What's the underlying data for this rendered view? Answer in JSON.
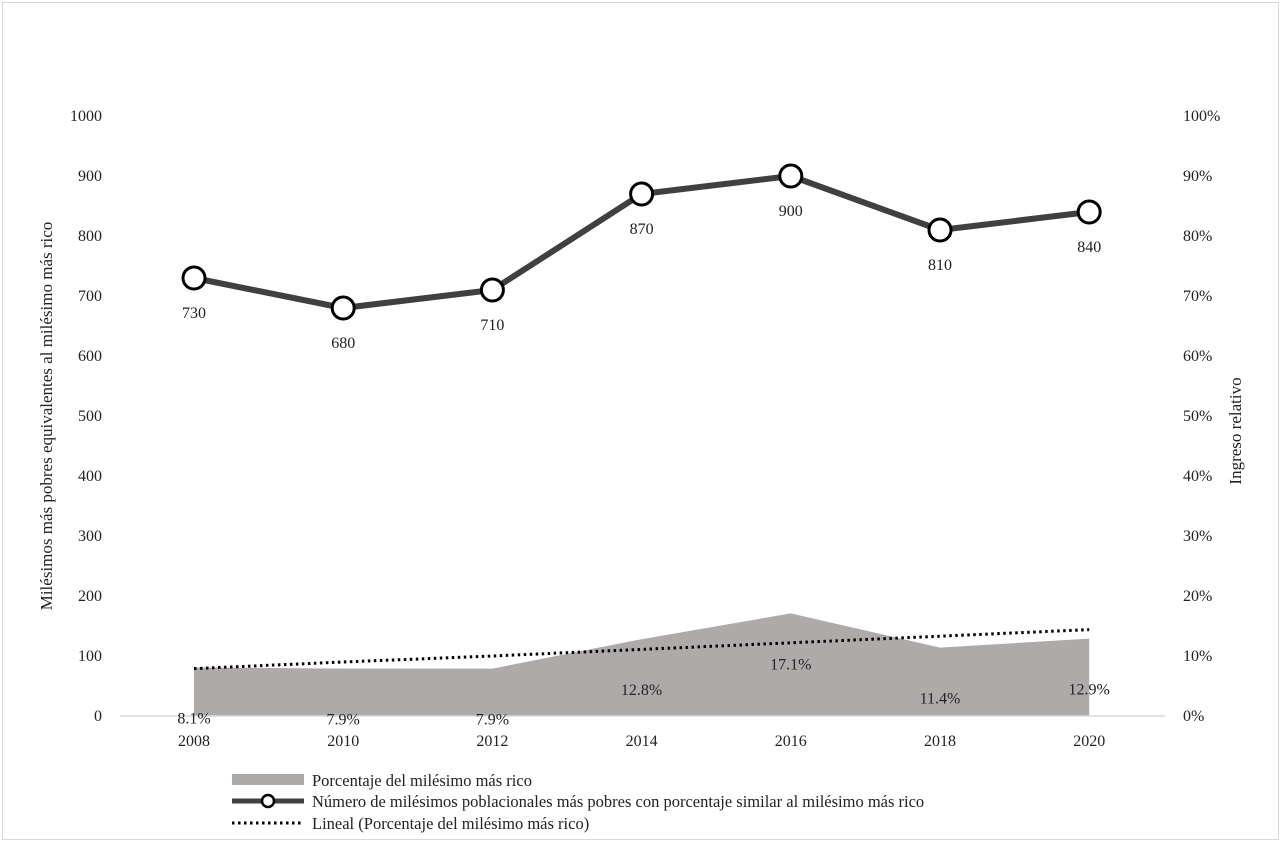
{
  "chart_data": {
    "type": "line",
    "x": [
      "2008",
      "2010",
      "2012",
      "2014",
      "2016",
      "2018",
      "2020"
    ],
    "left_axis": {
      "label": "Milésimos más pobres equivalentes al milésimo más rico",
      "range": [
        0,
        1000
      ],
      "ticks": [
        "0",
        "100",
        "200",
        "300",
        "400",
        "500",
        "600",
        "700",
        "800",
        "900",
        "1000"
      ]
    },
    "right_axis": {
      "label": "Ingreso relativo",
      "range": [
        0,
        100
      ],
      "ticks": [
        "0%",
        "10%",
        "20%",
        "30%",
        "40%",
        "50%",
        "60%",
        "70%",
        "80%",
        "90%",
        "100%"
      ]
    },
    "series": [
      {
        "name": "Porcentaje del milésimo más rico",
        "type": "area",
        "axis": "right",
        "values": [
          8.1,
          7.9,
          7.9,
          12.8,
          17.1,
          11.4,
          12.9
        ],
        "labels": [
          "8.1%",
          "7.9%",
          "7.9%",
          "12.8%",
          "17.1%",
          "11.4%",
          "12.9%"
        ],
        "color": "#aeaaaa"
      },
      {
        "name": "Número de milésimos poblacionales más pobres con porcentaje similar al milésimo más rico",
        "type": "line",
        "axis": "left",
        "values": [
          730,
          680,
          710,
          870,
          900,
          810,
          840
        ],
        "labels": [
          "730",
          "680",
          "710",
          "870",
          "900",
          "810",
          "840"
        ],
        "color": "#404040"
      },
      {
        "name": "Lineal (Porcentaje del milésimo más rico)",
        "type": "trendline",
        "axis": "right",
        "values": [
          7.9,
          9.0,
          10.0,
          11.1,
          12.2,
          13.3,
          14.4
        ],
        "color": "#000000"
      }
    ],
    "grid": false,
    "legend_position": "bottom"
  }
}
